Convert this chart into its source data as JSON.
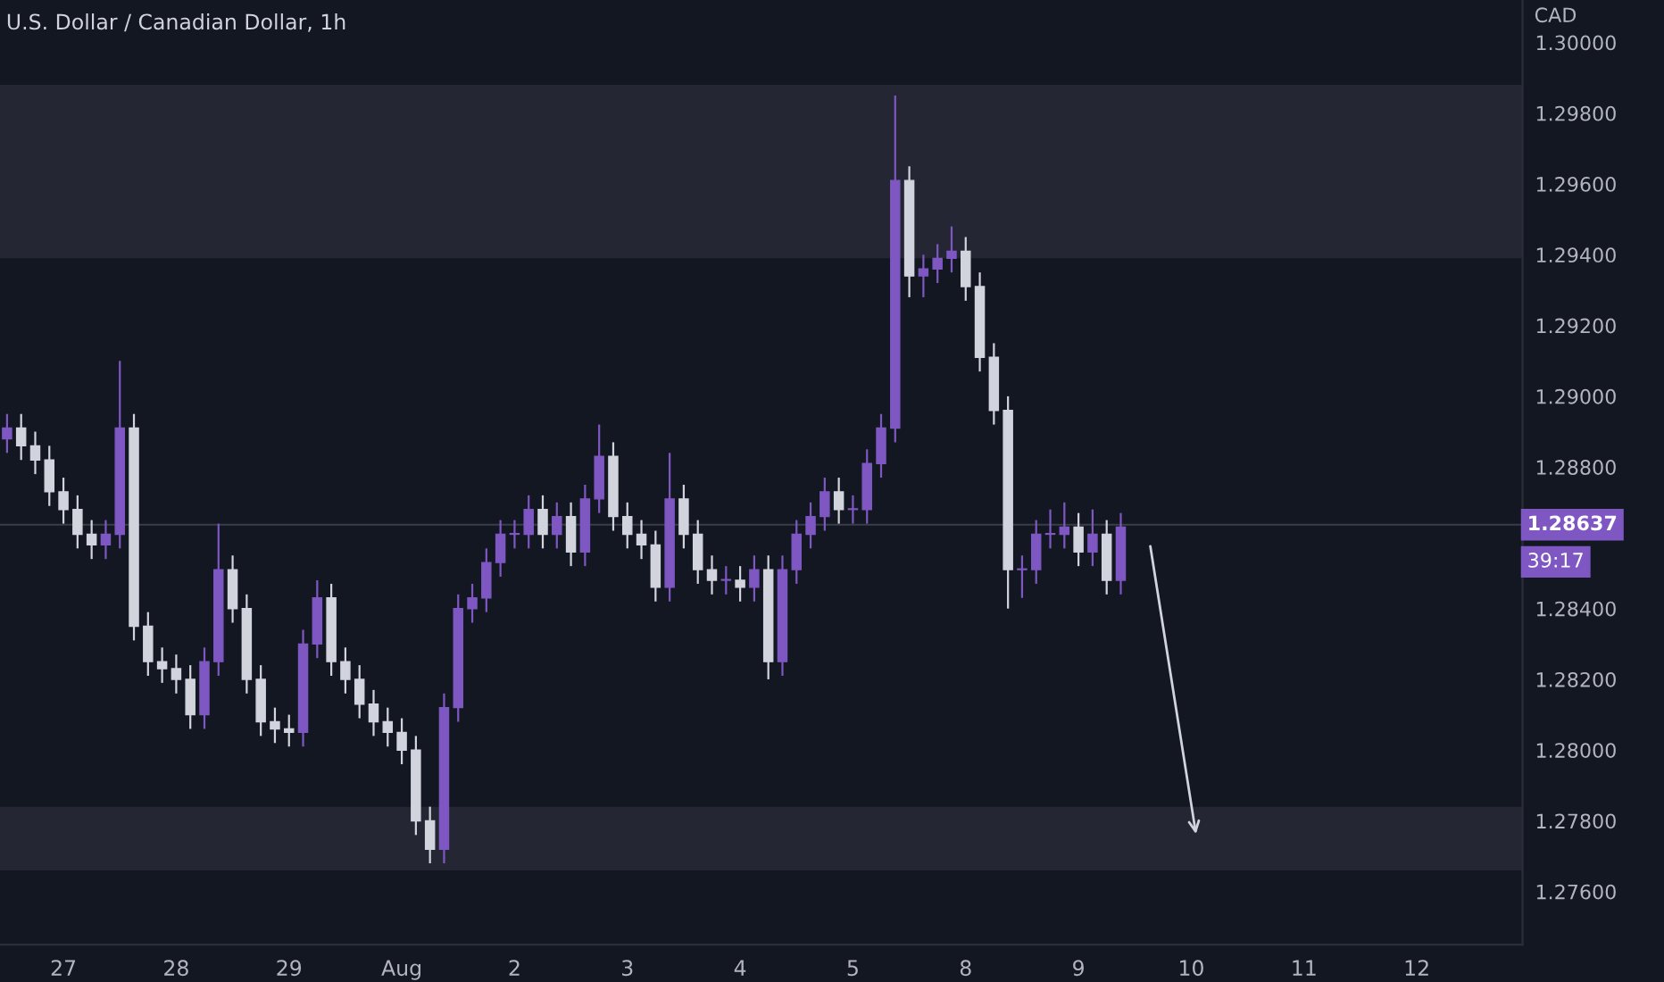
{
  "chart_data": {
    "type": "candlestick",
    "title": "U.S. Dollar / Canadian Dollar, 1h",
    "ylabel": "CAD",
    "categories": [
      null,
      null,
      null,
      null,
      "27",
      null,
      null,
      null,
      null,
      null,
      null,
      null,
      "28",
      null,
      null,
      null,
      null,
      null,
      null,
      null,
      "29",
      null,
      null,
      null,
      null,
      null,
      null,
      null,
      "Aug",
      null,
      null,
      null,
      null,
      null,
      null,
      null,
      "2",
      null,
      null,
      null,
      null,
      null,
      null,
      null,
      "3",
      null,
      null,
      null,
      null,
      null,
      null,
      null,
      "4",
      null,
      null,
      null,
      null,
      null,
      null,
      null,
      "5",
      null,
      null,
      null,
      null,
      null,
      null,
      null,
      "8",
      null,
      null,
      null,
      null,
      null,
      null,
      null,
      "9",
      null,
      null,
      null,
      null,
      null,
      null,
      null,
      "10",
      null,
      null,
      null,
      null,
      null,
      null,
      null,
      "11",
      null,
      null,
      null,
      null,
      null,
      null,
      null,
      "12",
      null,
      null,
      null,
      null,
      null,
      null,
      null
    ],
    "ohlc": [
      [
        1.2888,
        1.2895,
        1.2884,
        1.2891
      ],
      [
        1.2891,
        1.2895,
        1.2882,
        1.2886
      ],
      [
        1.2886,
        1.289,
        1.2878,
        1.2882
      ],
      [
        1.2882,
        1.2886,
        1.2869,
        1.2873
      ],
      [
        1.2873,
        1.2877,
        1.2864,
        1.2868
      ],
      [
        1.2868,
        1.2872,
        1.2857,
        1.2861
      ],
      [
        1.2861,
        1.2865,
        1.2854,
        1.2858
      ],
      [
        1.2858,
        1.2865,
        1.2854,
        1.2861
      ],
      [
        1.2861,
        1.291,
        1.2857,
        1.2891
      ],
      [
        1.2891,
        1.2895,
        1.2831,
        1.2835
      ],
      [
        1.2835,
        1.2839,
        1.2821,
        1.2825
      ],
      [
        1.2825,
        1.2829,
        1.2819,
        1.2823
      ],
      [
        1.2823,
        1.2827,
        1.2816,
        1.282
      ],
      [
        1.282,
        1.2824,
        1.2806,
        1.281
      ],
      [
        1.281,
        1.2829,
        1.2806,
        1.2825
      ],
      [
        1.2825,
        1.2864,
        1.2821,
        1.2851
      ],
      [
        1.2851,
        1.2855,
        1.2836,
        1.284
      ],
      [
        1.284,
        1.2844,
        1.2816,
        1.282
      ],
      [
        1.282,
        1.2824,
        1.2804,
        1.2808
      ],
      [
        1.2808,
        1.2812,
        1.2802,
        1.2806
      ],
      [
        1.2806,
        1.281,
        1.2801,
        1.2805
      ],
      [
        1.2805,
        1.2834,
        1.2801,
        1.283
      ],
      [
        1.283,
        1.2848,
        1.2826,
        1.2843
      ],
      [
        1.2843,
        1.2847,
        1.2821,
        1.2825
      ],
      [
        1.2825,
        1.2829,
        1.2816,
        1.282
      ],
      [
        1.282,
        1.2824,
        1.2809,
        1.2813
      ],
      [
        1.2813,
        1.2817,
        1.2804,
        1.2808
      ],
      [
        1.2808,
        1.2812,
        1.2801,
        1.2805
      ],
      [
        1.2805,
        1.2809,
        1.2796,
        1.28
      ],
      [
        1.28,
        1.2804,
        1.2776,
        1.278
      ],
      [
        1.278,
        1.2784,
        1.2768,
        1.2772
      ],
      [
        1.2772,
        1.2816,
        1.2768,
        1.2812
      ],
      [
        1.2812,
        1.2844,
        1.2808,
        1.284
      ],
      [
        1.284,
        1.2847,
        1.2836,
        1.2843
      ],
      [
        1.2843,
        1.2857,
        1.2839,
        1.2853
      ],
      [
        1.2853,
        1.2865,
        1.2849,
        1.2861
      ],
      [
        1.2861,
        1.2865,
        1.2857,
        1.2861
      ],
      [
        1.2861,
        1.2872,
        1.2857,
        1.2868
      ],
      [
        1.2868,
        1.2872,
        1.2857,
        1.2861
      ],
      [
        1.2861,
        1.287,
        1.2857,
        1.2866
      ],
      [
        1.2866,
        1.287,
        1.2852,
        1.2856
      ],
      [
        1.2856,
        1.2875,
        1.2852,
        1.2871
      ],
      [
        1.2871,
        1.2892,
        1.2867,
        1.2883
      ],
      [
        1.2883,
        1.2887,
        1.2862,
        1.2866
      ],
      [
        1.2866,
        1.287,
        1.2857,
        1.2861
      ],
      [
        1.2861,
        1.2865,
        1.2854,
        1.2858
      ],
      [
        1.2858,
        1.2862,
        1.2842,
        1.2846
      ],
      [
        1.2846,
        1.2884,
        1.2842,
        1.2871
      ],
      [
        1.2871,
        1.2875,
        1.2857,
        1.2861
      ],
      [
        1.2861,
        1.2865,
        1.2847,
        1.2851
      ],
      [
        1.2851,
        1.2855,
        1.2844,
        1.2848
      ],
      [
        1.2848,
        1.2852,
        1.2844,
        1.2848
      ],
      [
        1.2848,
        1.2852,
        1.2842,
        1.2846
      ],
      [
        1.2846,
        1.2855,
        1.2842,
        1.2851
      ],
      [
        1.2851,
        1.2855,
        1.282,
        1.2825
      ],
      [
        1.2825,
        1.2855,
        1.2821,
        1.2851
      ],
      [
        1.2851,
        1.2865,
        1.2847,
        1.2861
      ],
      [
        1.2861,
        1.287,
        1.2857,
        1.2866
      ],
      [
        1.2866,
        1.2877,
        1.2862,
        1.2873
      ],
      [
        1.2873,
        1.2877,
        1.2864,
        1.2868
      ],
      [
        1.2868,
        1.2872,
        1.2864,
        1.2868
      ],
      [
        1.2868,
        1.2885,
        1.2864,
        1.2881
      ],
      [
        1.2881,
        1.2895,
        1.2877,
        1.2891
      ],
      [
        1.2891,
        1.2985,
        1.2887,
        1.2961
      ],
      [
        1.2961,
        1.2965,
        1.2928,
        1.2934
      ],
      [
        1.2934,
        1.294,
        1.2928,
        1.2936
      ],
      [
        1.2936,
        1.2943,
        1.2932,
        1.2939
      ],
      [
        1.2939,
        1.2948,
        1.2935,
        1.2941
      ],
      [
        1.2941,
        1.2945,
        1.2927,
        1.2931
      ],
      [
        1.2931,
        1.2935,
        1.2907,
        1.2911
      ],
      [
        1.2911,
        1.2915,
        1.2892,
        1.2896
      ],
      [
        1.2896,
        1.29,
        1.284,
        1.2851
      ],
      [
        1.2851,
        1.2855,
        1.2843,
        1.2851
      ],
      [
        1.2851,
        1.2865,
        1.2847,
        1.2861
      ],
      [
        1.2861,
        1.2868,
        1.2857,
        1.2861
      ],
      [
        1.2861,
        1.287,
        1.2857,
        1.2863
      ],
      [
        1.2863,
        1.2867,
        1.2852,
        1.2856
      ],
      [
        1.2856,
        1.2868,
        1.2852,
        1.2861
      ],
      [
        1.2861,
        1.2865,
        1.2844,
        1.2848
      ],
      [
        1.2848,
        1.2867,
        1.2844,
        1.2863
      ],
      null,
      null,
      null,
      null,
      null,
      null,
      null,
      null,
      null,
      null,
      null,
      null,
      null,
      null,
      null,
      null,
      null,
      null,
      null,
      null,
      null,
      null,
      null,
      null,
      null,
      null,
      null,
      null
    ],
    "colors": [
      "#7e57c2",
      "#d1d4dc",
      "#d1d4dc",
      "#d1d4dc",
      "#d1d4dc",
      "#d1d4dc",
      "#d1d4dc",
      "#7e57c2",
      "#7e57c2",
      "#d1d4dc",
      "#d1d4dc",
      "#d1d4dc",
      "#d1d4dc",
      "#d1d4dc",
      "#7e57c2",
      "#7e57c2",
      "#d1d4dc",
      "#d1d4dc",
      "#d1d4dc",
      "#d1d4dc",
      "#d1d4dc",
      "#7e57c2",
      "#7e57c2",
      "#d1d4dc",
      "#d1d4dc",
      "#d1d4dc",
      "#d1d4dc",
      "#d1d4dc",
      "#d1d4dc",
      "#d1d4dc",
      "#d1d4dc",
      "#7e57c2",
      "#7e57c2",
      "#7e57c2",
      "#7e57c2",
      "#7e57c2",
      "#7e57c2",
      "#7e57c2",
      "#d1d4dc",
      "#7e57c2",
      "#d1d4dc",
      "#7e57c2",
      "#7e57c2",
      "#d1d4dc",
      "#d1d4dc",
      "#d1d4dc",
      "#d1d4dc",
      "#7e57c2",
      "#d1d4dc",
      "#d1d4dc",
      "#d1d4dc",
      "#7e57c2",
      "#d1d4dc",
      "#7e57c2",
      "#d1d4dc",
      "#7e57c2",
      "#7e57c2",
      "#7e57c2",
      "#7e57c2",
      "#d1d4dc",
      "#7e57c2",
      "#7e57c2",
      "#7e57c2",
      "#7e57c2",
      "#d1d4dc",
      "#7e57c2",
      "#7e57c2",
      "#7e57c2",
      "#d1d4dc",
      "#d1d4dc",
      "#d1d4dc",
      "#d1d4dc",
      "#7e57c2",
      "#7e57c2",
      "#7e57c2",
      "#7e57c2",
      "#d1d4dc",
      "#7e57c2",
      "#d1d4dc",
      "#7e57c2",
      null,
      null,
      null,
      null,
      null,
      null,
      null,
      null,
      null,
      null,
      null,
      null,
      null,
      null,
      null,
      null,
      null,
      null,
      null,
      null,
      null,
      null,
      null,
      null,
      null,
      null,
      null,
      null
    ],
    "ylim": [
      1.2745,
      1.3012
    ],
    "yticks": [
      {
        "value": 1.276,
        "label": "1.27600"
      },
      {
        "value": 1.278,
        "label": "1.27800"
      },
      {
        "value": 1.28,
        "label": "1.28000"
      },
      {
        "value": 1.282,
        "label": "1.28200"
      },
      {
        "value": 1.284,
        "label": "1.28400"
      },
      {
        "value": 1.288,
        "label": "1.28800"
      },
      {
        "value": 1.29,
        "label": "1.29000"
      },
      {
        "value": 1.292,
        "label": "1.29200"
      },
      {
        "value": 1.294,
        "label": "1.29400"
      },
      {
        "value": 1.296,
        "label": "1.29600"
      },
      {
        "value": 1.298,
        "label": "1.29800"
      },
      {
        "value": 1.3,
        "label": "1.30000"
      }
    ],
    "ref_lines": [
      {
        "axis": "y",
        "value": 1.28637,
        "label": "1.28637",
        "color": "#3a3e4a"
      }
    ],
    "bands": [
      {
        "axis": "y",
        "from": 1.2939,
        "to": 1.2988,
        "color": "#242733"
      },
      {
        "axis": "y",
        "from": 1.2766,
        "to": 1.2784,
        "color": "#242733"
      }
    ],
    "annotations": [
      "39:17"
    ],
    "grid": false
  }
}
